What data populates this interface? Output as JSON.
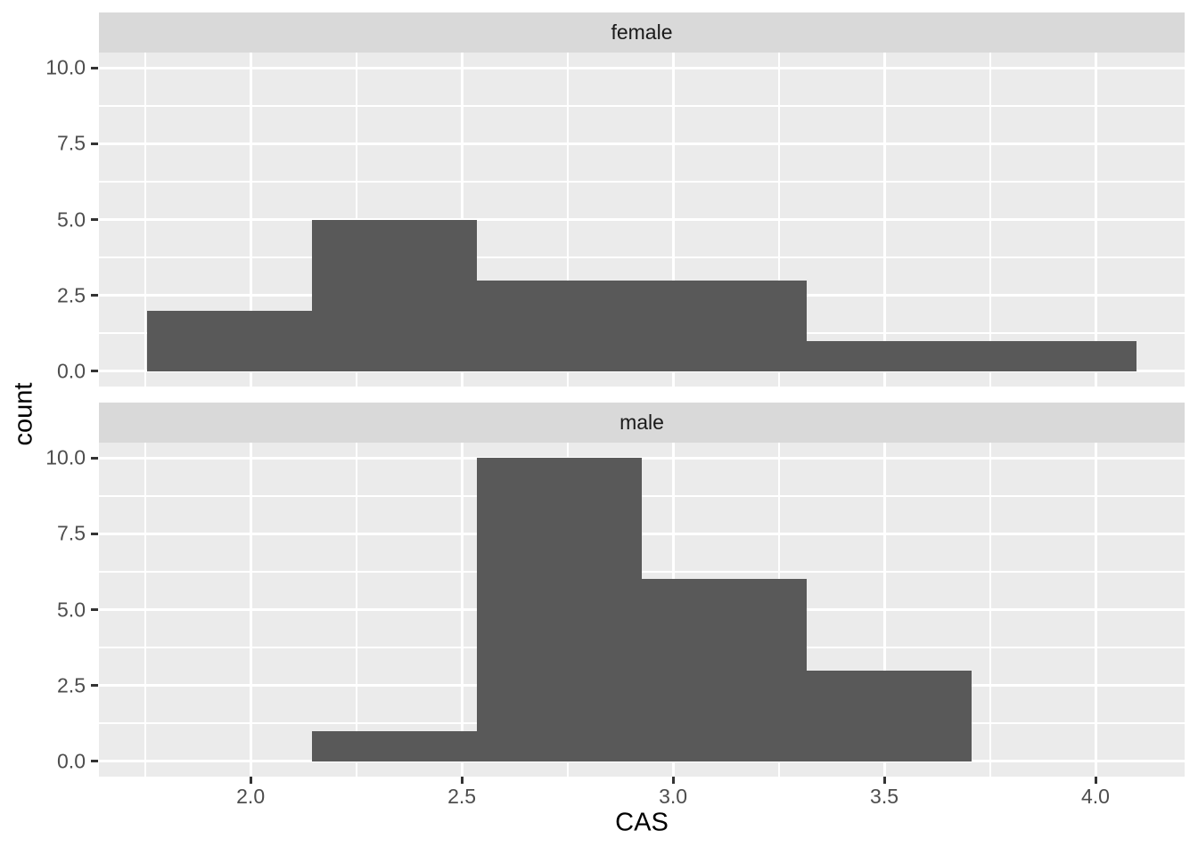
{
  "chart_data": {
    "type": "bar",
    "subtype": "faceted-histogram",
    "title": "",
    "xlabel": "CAS",
    "ylabel": "count",
    "facet_values": [
      "female",
      "male"
    ],
    "bin_edges": [
      1.755,
      2.146,
      2.536,
      2.926,
      3.317,
      3.707,
      4.097
    ],
    "facets": [
      {
        "label": "female",
        "counts": [
          2,
          5,
          3,
          3,
          1,
          1
        ]
      },
      {
        "label": "male",
        "counts": [
          0,
          1,
          10,
          6,
          3,
          0
        ]
      }
    ],
    "x_domain": [
      1.641,
      4.211
    ],
    "y_domain": [
      -0.5,
      10.5
    ],
    "x_ticks": [
      {
        "value": 2.0,
        "label": "2.0"
      },
      {
        "value": 2.5,
        "label": "2.5"
      },
      {
        "value": 3.0,
        "label": "3.0"
      },
      {
        "value": 3.5,
        "label": "3.5"
      },
      {
        "value": 4.0,
        "label": "4.0"
      }
    ],
    "y_ticks": [
      {
        "value": 0.0,
        "label": "0.0"
      },
      {
        "value": 2.5,
        "label": "2.5"
      },
      {
        "value": 5.0,
        "label": "5.0"
      },
      {
        "value": 7.5,
        "label": "7.5"
      },
      {
        "value": 10.0,
        "label": "10.0"
      }
    ],
    "x_minor_ticks": [
      1.75,
      2.25,
      2.75,
      3.25,
      3.75
    ],
    "y_minor_ticks": [
      1.25,
      3.75,
      6.25,
      8.75
    ],
    "grid": true,
    "legend_position": "none",
    "colors": {
      "bar_fill": "#595959",
      "panel_bg": "#EBEBEB",
      "strip_bg": "#D9D9D9",
      "grid": "#FFFFFF",
      "tick_label": "#4D4D4D",
      "tick_mark": "#333333",
      "axis_title": "#000000",
      "strip_text": "#1A1A1A",
      "background": "#FFFFFF"
    }
  }
}
